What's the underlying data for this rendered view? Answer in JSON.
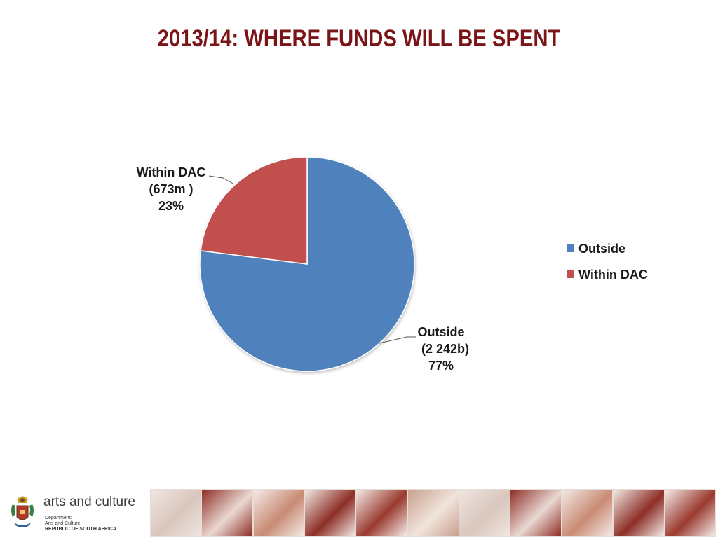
{
  "title": "2013/14:  WHERE FUNDS WILL BE SPENT",
  "chart_data": {
    "type": "pie",
    "title": "",
    "slices": [
      {
        "name": "Outside",
        "value": 77,
        "amount_label": "(2 242b)",
        "percent_label": "77%",
        "color": "#4f81bd"
      },
      {
        "name": "Within DAC",
        "value": 23,
        "amount_label": "(673m )",
        "percent_label": "23%",
        "color": "#c0504d"
      }
    ],
    "legend": {
      "placement": "right",
      "entries": [
        "Outside",
        "Within DAC"
      ]
    },
    "start_angle": "12 o'clock",
    "direction": "clockwise"
  },
  "footer": {
    "brand": "arts and culture",
    "dept_lines": [
      "Department:",
      "Arts and Culture"
    ],
    "country": "REPUBLIC OF SOUTH AFRICA",
    "image_strip": [
      "dancers-image",
      "film-reel-image",
      "ballet-shoes-image",
      "saxophone-image",
      "dancing-figures-image",
      "beadwork-image",
      "dancers-image",
      "film-reel-image",
      "ballet-shoes-image",
      "saxophone-image",
      "dancing-figures-image"
    ]
  }
}
